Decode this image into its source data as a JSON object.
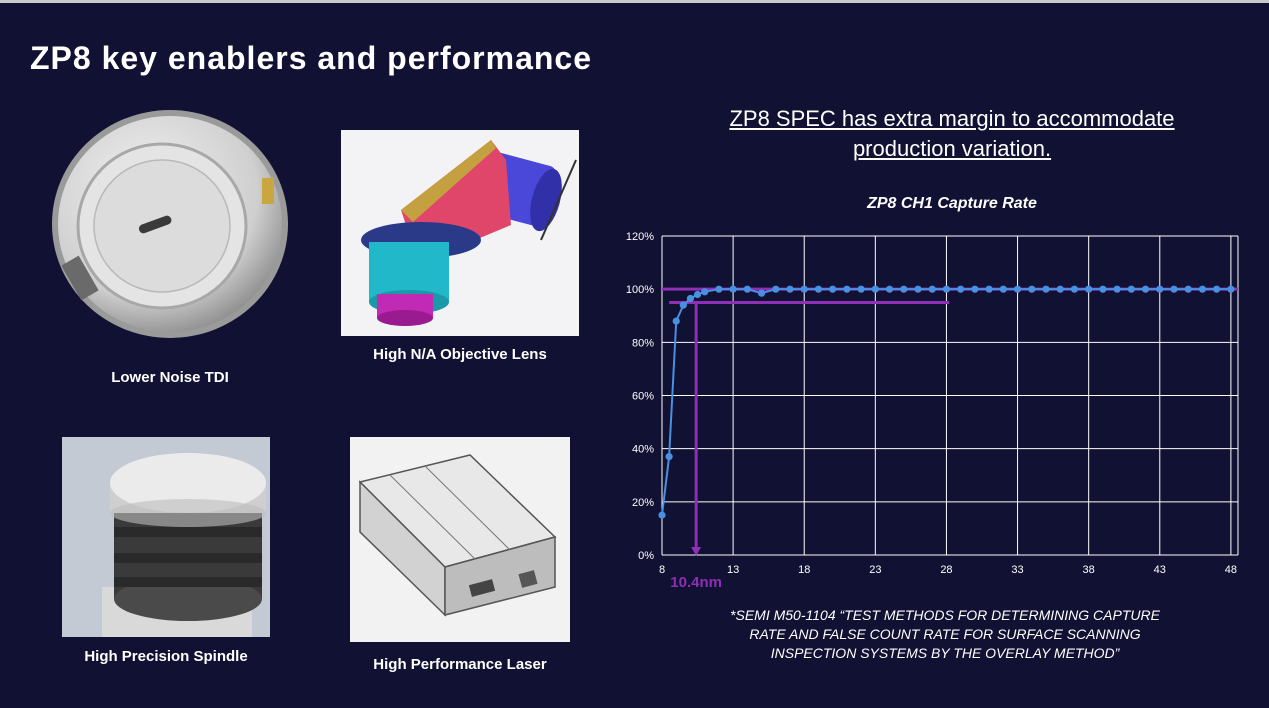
{
  "title": "ZP8 key enablers and performance",
  "enablers": [
    {
      "caption": "Lower Noise TDI",
      "icon": "tdi-sensor-icon"
    },
    {
      "caption": "High N/A Objective Lens",
      "icon": "objective-lens-icon"
    },
    {
      "caption": "High Precision Spindle",
      "icon": "spindle-icon"
    },
    {
      "caption": "High Performance Laser",
      "icon": "laser-module-icon"
    }
  ],
  "headline": {
    "line1": "ZP8 SPEC has extra margin to accommodate",
    "line2": "production variation."
  },
  "footnote": {
    "line1": "*SEMI M50-1104 “TEST METHODS FOR DETERMINING CAPTURE",
    "line2": "RATE AND FALSE COUNT RATE FOR SURFACE SCANNING",
    "line3": "INSPECTION SYSTEMS BY THE OVERLAY METHOD”"
  },
  "colors": {
    "background": "#111133",
    "series": "#4a90e2",
    "marker": "#8e2fb5"
  },
  "chart_data": {
    "type": "scatter",
    "title": "ZP8 CH1 Capture Rate",
    "xlabel": "",
    "ylabel": "",
    "xlim": [
      8,
      48.5
    ],
    "ylim": [
      0,
      120
    ],
    "x_ticks": [
      "8",
      "13",
      "18",
      "23",
      "28",
      "33",
      "38",
      "43",
      "48"
    ],
    "y_ticks": [
      "0%",
      "20%",
      "40%",
      "60%",
      "80%",
      "100%",
      "120%"
    ],
    "grid": true,
    "series": [
      {
        "x": [
          8,
          8.5,
          9,
          9.5,
          10,
          10.5,
          11,
          12,
          13,
          14,
          15,
          16,
          17,
          18,
          19,
          20,
          21,
          22,
          23,
          24,
          25,
          26,
          27,
          28,
          29,
          30,
          31,
          32,
          33,
          34,
          35,
          36,
          37,
          38,
          39,
          40,
          41,
          42,
          43,
          44,
          45,
          46,
          47,
          48
        ],
        "y": [
          15,
          37,
          88,
          94,
          96.5,
          98,
          99,
          100,
          100,
          100,
          98.5,
          100,
          100,
          100,
          100,
          100,
          100,
          100,
          100,
          100,
          100,
          100,
          100,
          100,
          100,
          100,
          100,
          100,
          100,
          100,
          100,
          100,
          100,
          100,
          100,
          100,
          100,
          100,
          100,
          100,
          100,
          100,
          100,
          100
        ]
      }
    ],
    "reference_lines": [
      {
        "y": 100,
        "x_from": 8,
        "x_to": 48.5
      },
      {
        "y": 95,
        "x_from": 8.5,
        "x_to": 28.2
      }
    ],
    "marker": {
      "x": 10.4,
      "label": "10.4nm"
    }
  }
}
